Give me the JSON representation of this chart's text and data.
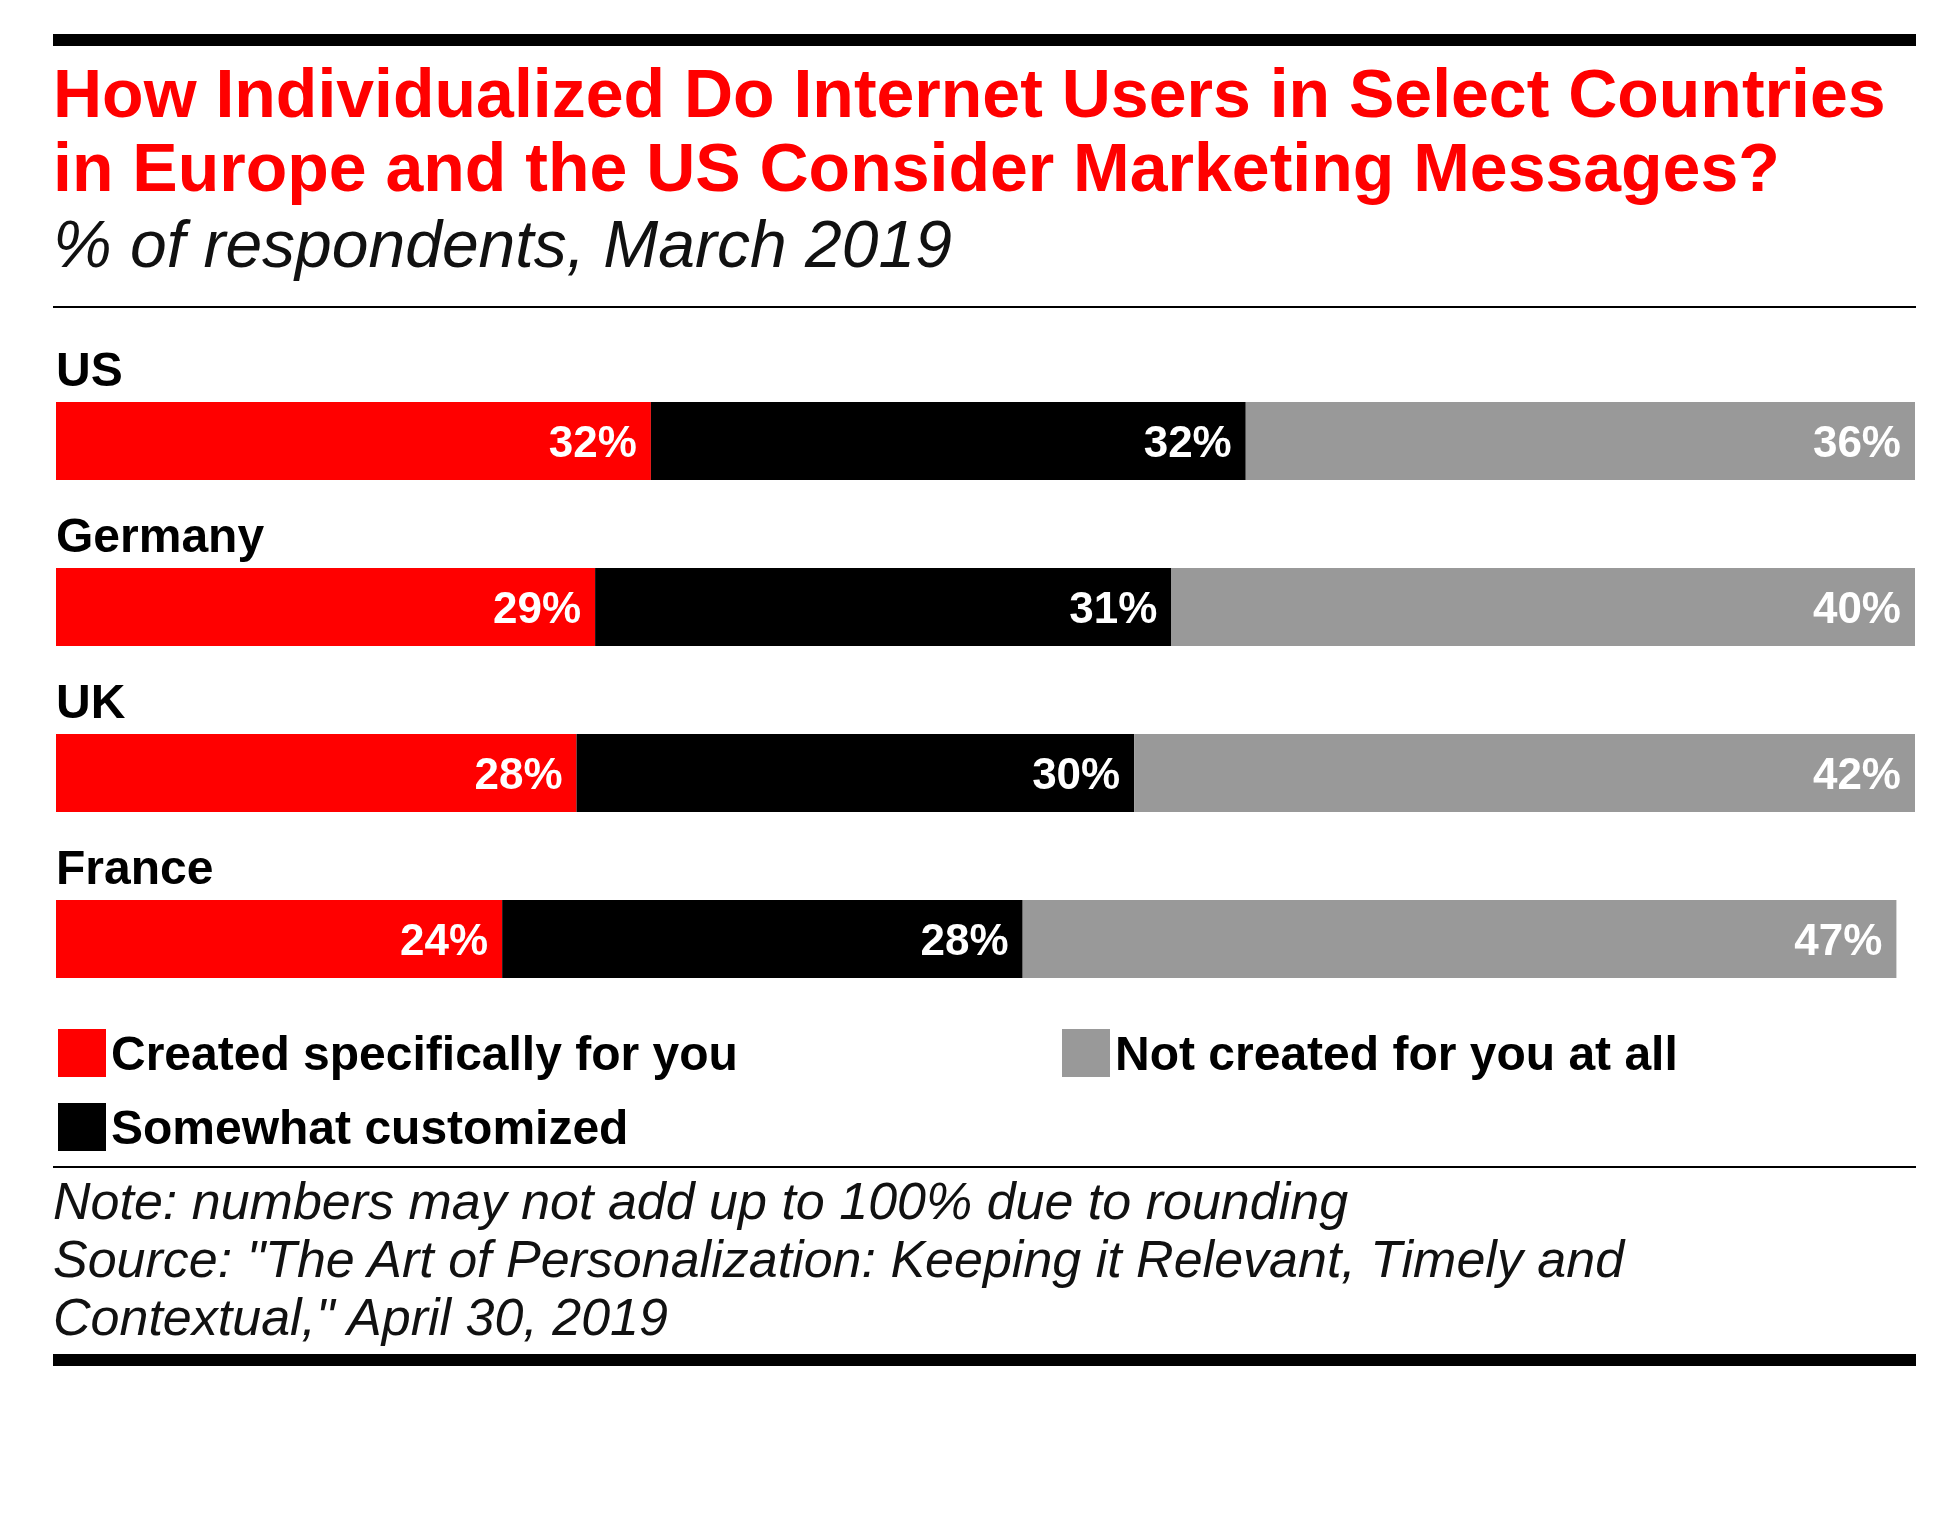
{
  "chart_data": {
    "type": "bar",
    "orientation": "horizontal",
    "stacked": true,
    "title": "How Individualized Do Internet Users in Select Countries in Europe and the US Consider Marketing Messages?",
    "subtitle": "% of respondents, March 2019",
    "categories": [
      "US",
      "Germany",
      "UK",
      "France"
    ],
    "series": [
      {
        "name": "Created specifically for you",
        "color": "#ff0000",
        "values": [
          32,
          29,
          28,
          24
        ],
        "value_labels": [
          "32%",
          "29%",
          "28%",
          "24%"
        ]
      },
      {
        "name": "Somewhat customized",
        "color": "#000000",
        "values": [
          32,
          31,
          30,
          28
        ],
        "value_labels": [
          "32%",
          "31%",
          "30%",
          "28%"
        ]
      },
      {
        "name": "Not created for you at all",
        "color": "#999999",
        "values": [
          36,
          40,
          42,
          47
        ],
        "value_labels": [
          "36%",
          "40%",
          "42%",
          "47%"
        ]
      }
    ],
    "legend": "bottom",
    "annotations": [
      "Note: numbers may not add up to 100% due to rounding",
      "Source: \"The Art of Personalization: Keeping it Relevant, Timely and Contextual,\" April 30, 2019"
    ]
  }
}
